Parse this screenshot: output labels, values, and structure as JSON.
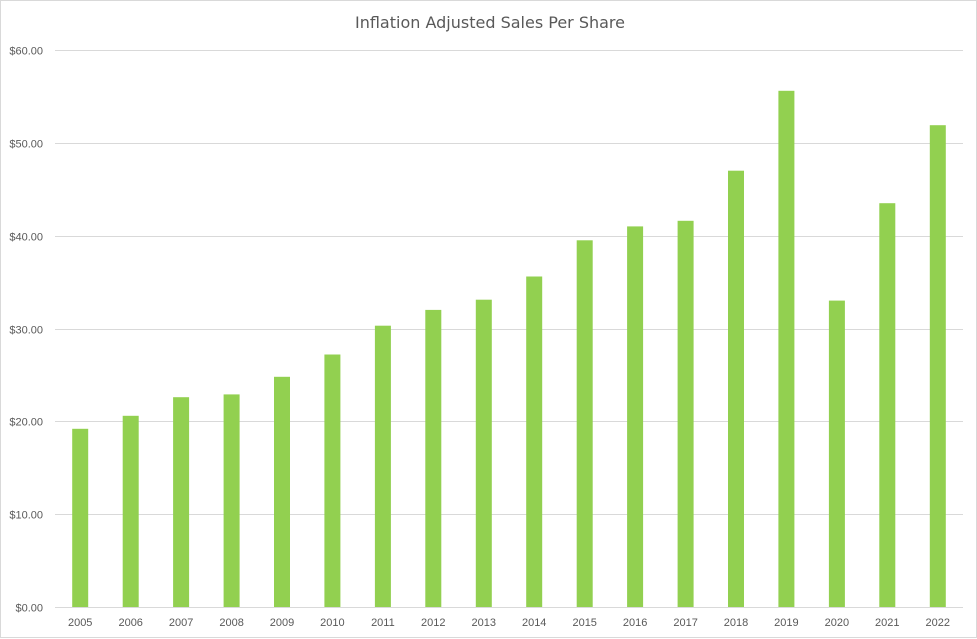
{
  "chart_data": {
    "type": "bar",
    "title": "Inflation Adjusted Sales Per Share",
    "categories": [
      "2005",
      "2006",
      "2007",
      "2008",
      "2009",
      "2010",
      "2011",
      "2012",
      "2013",
      "2014",
      "2015",
      "2016",
      "2017",
      "2018",
      "2019",
      "2020",
      "2021",
      "2022"
    ],
    "series": [
      {
        "values": [
          19.2,
          20.6,
          22.6,
          22.9,
          24.8,
          27.2,
          30.3,
          32.0,
          33.1,
          35.6,
          39.5,
          41.0,
          41.6,
          47.0,
          55.6,
          33.0,
          43.5,
          51.9
        ]
      }
    ],
    "y_tick_labels": [
      "$0.00",
      "$10.00",
      "$20.00",
      "$30.00",
      "$40.00",
      "$50.00",
      "$60.00"
    ],
    "y_ticks": [
      0,
      10,
      20,
      30,
      40,
      50,
      60
    ],
    "ylim": [
      0,
      60
    ],
    "grid": "horizontal",
    "bar_color": "#92d050",
    "grid_color": "#d9d9d9",
    "text_color": "#595959"
  }
}
